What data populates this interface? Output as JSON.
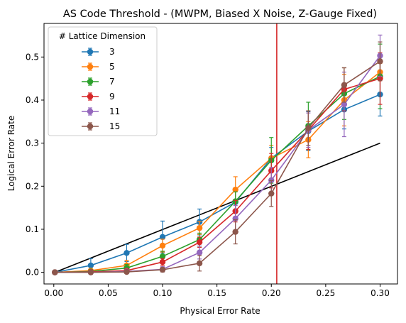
{
  "chart_data": {
    "type": "line",
    "title": "AS Code Threshold - (MWPM, Biased X Noise, Z-Gauge Fixed)",
    "xlabel": "Physical Error Rate",
    "ylabel": "Logical Error Rate",
    "xlim": [
      -0.009,
      0.316
    ],
    "ylim": [
      -0.027,
      0.578
    ],
    "xticks": [
      0.0,
      0.05,
      0.1,
      0.15,
      0.2,
      0.25,
      0.3
    ],
    "xtick_labels": [
      "0.00",
      "0.05",
      "0.10",
      "0.15",
      "0.20",
      "0.25",
      "0.30"
    ],
    "yticks": [
      0.0,
      0.1,
      0.2,
      0.3,
      0.4,
      0.5
    ],
    "ytick_labels": [
      "0.0",
      "0.1",
      "0.2",
      "0.3",
      "0.4",
      "0.5"
    ],
    "grid": false,
    "legend": {
      "title": "# Lattice Dimension",
      "placement": "top-left"
    },
    "x": [
      0.001,
      0.034,
      0.067,
      0.1,
      0.134,
      0.167,
      0.2,
      0.234,
      0.267,
      0.3
    ],
    "series": [
      {
        "name": "3",
        "color": "#1f77b4",
        "values": [
          0.0,
          0.016,
          0.045,
          0.082,
          0.117,
          0.163,
          0.265,
          0.328,
          0.378,
          0.413
        ],
        "errors": [
          0.0,
          0.016,
          0.02,
          0.037,
          0.03,
          0.025,
          0.025,
          0.045,
          0.045,
          0.05
        ]
      },
      {
        "name": "5",
        "color": "#ff7f0e",
        "values": [
          0.0,
          0.004,
          0.016,
          0.062,
          0.103,
          0.192,
          0.265,
          0.308,
          0.4,
          0.465
        ],
        "errors": [
          0.0,
          0.004,
          0.012,
          0.015,
          0.015,
          0.03,
          0.03,
          0.042,
          0.06,
          0.02
        ]
      },
      {
        "name": "7",
        "color": "#2ca02c",
        "values": [
          0.0,
          0.002,
          0.01,
          0.037,
          0.076,
          0.165,
          0.26,
          0.34,
          0.415,
          0.455
        ],
        "errors": [
          0.0,
          0.002,
          0.008,
          0.012,
          0.015,
          0.022,
          0.053,
          0.055,
          0.06,
          0.075
        ]
      },
      {
        "name": "9",
        "color": "#d62728",
        "values": [
          0.0,
          0.001,
          0.004,
          0.024,
          0.07,
          0.142,
          0.236,
          0.33,
          0.425,
          0.45
        ],
        "errors": [
          0.0,
          0.001,
          0.003,
          0.008,
          0.012,
          0.025,
          0.04,
          0.045,
          0.05,
          0.06
        ]
      },
      {
        "name": "11",
        "color": "#9467bd",
        "values": [
          0.0,
          0.0,
          0.002,
          0.007,
          0.046,
          0.125,
          0.214,
          0.33,
          0.39,
          0.503
        ],
        "errors": [
          0.0,
          0.0,
          0.002,
          0.006,
          0.015,
          0.03,
          0.03,
          0.04,
          0.075,
          0.048
        ]
      },
      {
        "name": "15",
        "color": "#8c564b",
        "values": [
          0.0,
          0.0,
          0.001,
          0.006,
          0.021,
          0.094,
          0.183,
          0.335,
          0.435,
          0.49
        ],
        "errors": [
          0.0,
          0.0,
          0.001,
          0.005,
          0.018,
          0.028,
          0.03,
          0.04,
          0.04,
          0.045
        ]
      }
    ],
    "reference_line": {
      "color": "#000000",
      "x": [
        0.001,
        0.3
      ],
      "y": [
        0.0,
        0.3
      ]
    },
    "threshold_line": {
      "color": "#d62728",
      "x": 0.205
    }
  }
}
